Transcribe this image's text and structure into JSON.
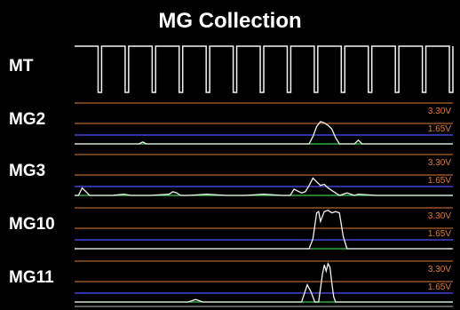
{
  "chart_data": {
    "type": "line",
    "title": "MG Collection",
    "x_range": [
      0,
      1
    ],
    "panels": [
      {
        "name": "MT",
        "kind": "square_wave",
        "cycles": 14,
        "duty": 0.13
      },
      {
        "name": "MG2",
        "ref_labels": {
          "high": "3.30V",
          "mid": "1.65V"
        },
        "ylim": [
          0,
          3.3
        ],
        "x": [
          0.0,
          0.1,
          0.17,
          0.18,
          0.19,
          0.3,
          0.5,
          0.6,
          0.62,
          0.63,
          0.64,
          0.65,
          0.66,
          0.67,
          0.68,
          0.69,
          0.7,
          0.71,
          0.72,
          0.74,
          0.75,
          0.76,
          0.77,
          0.8,
          1.0
        ],
        "y": [
          0.0,
          0.0,
          0.0,
          0.15,
          0.0,
          0.0,
          0.0,
          0.0,
          0.0,
          0.6,
          1.4,
          1.8,
          1.7,
          1.5,
          1.2,
          0.5,
          0.0,
          0.0,
          0.0,
          0.0,
          0.3,
          0.0,
          0.0,
          0.0,
          0.0
        ]
      },
      {
        "name": "MG3",
        "ref_labels": {
          "high": "3.30V",
          "mid": "1.65V"
        },
        "ylim": [
          0,
          3.3
        ],
        "x": [
          0.0,
          0.01,
          0.02,
          0.03,
          0.04,
          0.05,
          0.1,
          0.13,
          0.15,
          0.18,
          0.2,
          0.25,
          0.26,
          0.27,
          0.28,
          0.3,
          0.35,
          0.4,
          0.45,
          0.5,
          0.55,
          0.57,
          0.58,
          0.6,
          0.61,
          0.62,
          0.63,
          0.64,
          0.65,
          0.66,
          0.67,
          0.68,
          0.69,
          0.7,
          0.72,
          0.74,
          0.75,
          0.8,
          0.85,
          1.0
        ],
        "y": [
          0.0,
          0.0,
          0.6,
          0.3,
          0.0,
          0.0,
          0.0,
          0.1,
          0.0,
          0.0,
          0.0,
          0.1,
          0.3,
          0.2,
          0.0,
          0.0,
          0.1,
          0.0,
          0.0,
          0.1,
          0.0,
          0.0,
          0.5,
          0.2,
          0.3,
          0.8,
          1.4,
          1.1,
          0.8,
          0.9,
          0.6,
          0.4,
          0.2,
          0.0,
          0.2,
          0.0,
          0.1,
          0.0,
          0.0,
          0.0
        ]
      },
      {
        "name": "MG10",
        "ref_labels": {
          "high": "3.30V",
          "mid": "1.65V"
        },
        "ylim": [
          0,
          3.3
        ],
        "x": [
          0.0,
          0.5,
          0.6,
          0.62,
          0.63,
          0.64,
          0.645,
          0.65,
          0.66,
          0.67,
          0.68,
          0.69,
          0.7,
          0.71,
          0.72,
          1.0
        ],
        "y": [
          0.0,
          0.0,
          0.0,
          0.0,
          0.8,
          2.9,
          3.0,
          2.2,
          3.0,
          3.1,
          2.9,
          3.0,
          2.9,
          1.0,
          0.0,
          0.0
        ]
      },
      {
        "name": "MG11",
        "ref_labels": {
          "high": "3.30V",
          "mid": "1.65V"
        },
        "ylim": [
          0,
          3.3
        ],
        "x": [
          0.0,
          0.3,
          0.32,
          0.34,
          0.6,
          0.615,
          0.625,
          0.635,
          0.645,
          0.655,
          0.66,
          0.665,
          0.67,
          0.675,
          0.68,
          0.685,
          0.69,
          0.7,
          0.72,
          1.0
        ],
        "y": [
          0.0,
          0.0,
          0.2,
          0.0,
          0.0,
          1.4,
          0.8,
          0.0,
          0.0,
          2.2,
          3.0,
          2.5,
          3.1,
          2.8,
          1.5,
          0.4,
          0.0,
          0.0,
          0.0,
          0.0
        ]
      }
    ]
  }
}
